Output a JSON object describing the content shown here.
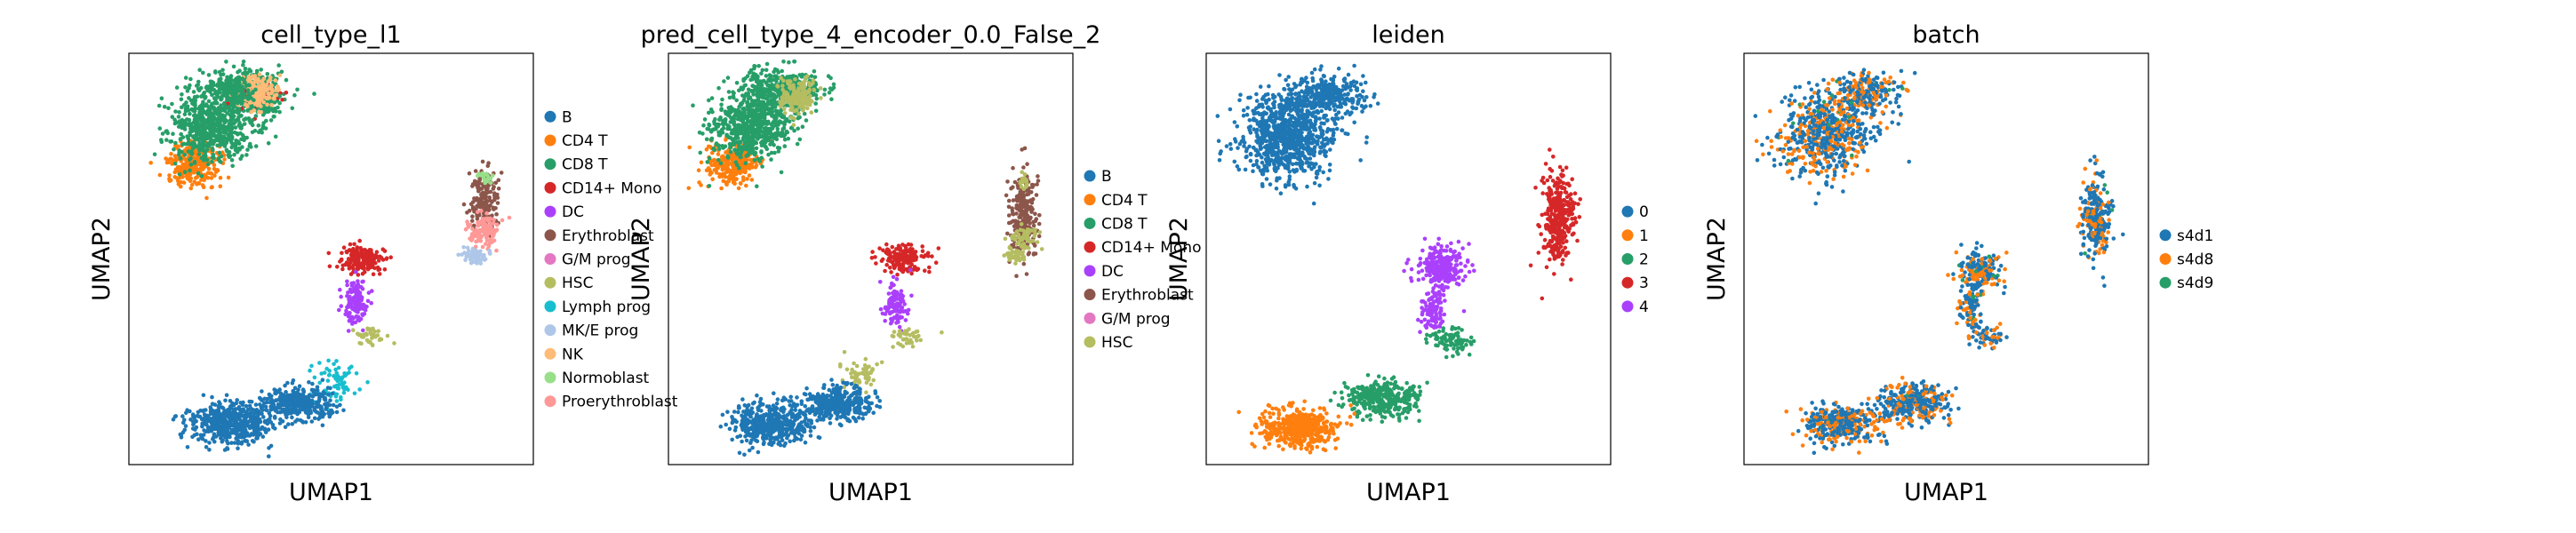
{
  "chart_data": [
    {
      "type": "scatter",
      "title": "cell_type_l1",
      "xlabel": "UMAP1",
      "ylabel": "UMAP2",
      "legend_position": "right",
      "legend": [
        {
          "label": "B",
          "color": "#1f77b4"
        },
        {
          "label": "CD4 T",
          "color": "#ff7f0e"
        },
        {
          "label": "CD8 T",
          "color": "#279e68"
        },
        {
          "label": "CD14+ Mono",
          "color": "#d62728"
        },
        {
          "label": "DC",
          "color": "#aa40fc"
        },
        {
          "label": "Erythroblast",
          "color": "#8c564b"
        },
        {
          "label": "G/M prog",
          "color": "#e377c2"
        },
        {
          "label": "HSC",
          "color": "#b5bd61"
        },
        {
          "label": "Lymph prog",
          "color": "#17becf"
        },
        {
          "label": "MK/E prog",
          "color": "#aec7e8"
        },
        {
          "label": "NK",
          "color": "#ffbb78"
        },
        {
          "label": "Normoblast",
          "color": "#98df8a"
        },
        {
          "label": "Proerythroblast",
          "color": "#ff9896"
        }
      ]
    },
    {
      "type": "scatter",
      "title": "pred_cell_type_4_encoder_0.0_False_2",
      "xlabel": "UMAP1",
      "ylabel": "UMAP2",
      "legend_position": "right",
      "legend": [
        {
          "label": "B",
          "color": "#1f77b4"
        },
        {
          "label": "CD4 T",
          "color": "#ff7f0e"
        },
        {
          "label": "CD8 T",
          "color": "#279e68"
        },
        {
          "label": "CD14+ Mono",
          "color": "#d62728"
        },
        {
          "label": "DC",
          "color": "#aa40fc"
        },
        {
          "label": "Erythroblast",
          "color": "#8c564b"
        },
        {
          "label": "G/M prog",
          "color": "#e377c2"
        },
        {
          "label": "HSC",
          "color": "#b5bd61"
        }
      ]
    },
    {
      "type": "scatter",
      "title": "leiden",
      "xlabel": "UMAP1",
      "ylabel": "UMAP2",
      "legend_position": "right",
      "legend": [
        {
          "label": "0",
          "color": "#1f77b4"
        },
        {
          "label": "1",
          "color": "#ff7f0e"
        },
        {
          "label": "2",
          "color": "#279e68"
        },
        {
          "label": "3",
          "color": "#d62728"
        },
        {
          "label": "4",
          "color": "#aa40fc"
        }
      ]
    },
    {
      "type": "scatter",
      "title": "batch",
      "xlabel": "UMAP1",
      "ylabel": "UMAP2",
      "legend_position": "right",
      "legend": [
        {
          "label": "s4d1",
          "color": "#1f77b4"
        },
        {
          "label": "s4d8",
          "color": "#ff7f0e"
        },
        {
          "label": "s4d9",
          "color": "#279e68"
        }
      ]
    }
  ]
}
